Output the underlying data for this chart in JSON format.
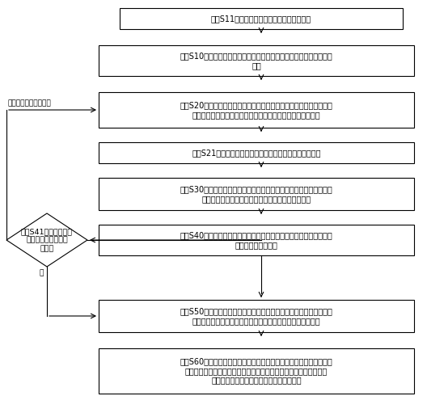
{
  "bg_color": "#ffffff",
  "box_fill": "#ffffff",
  "box_edge": "#000000",
  "arrow_color": "#000000",
  "font_color": "#000000",
  "s11_text": "步骤S11判断涂覆对象为竖直分布多相裸导线",
  "s10_text": "步骤S10涂覆前准备：确定涂料种类、计算推料速度、行走速度和涂料\n用量",
  "s20_text": "步骤S20吹挂行走模块：先分别在最上端和最下端的裸导线上各安装一\n套滑轮，再将两套行走模块的其余部件分别吹挂在对应滑轮上",
  "s21_text": "步骤S21整理线路：把通讯天线和连接线拧紧在行走模块上",
  "s30_text": "步骤S30安装推料模块：添加涂料，将推料模块安装在最下端裸导线上\n的行走模块下，上端的行走模块挂上对应重量的重物",
  "s40_text": "步骤S40安装涂覆模块：将涂覆模块安装在上端裸导线上的行走模块后\n方，嘴头包围裸导线",
  "s50_text": "步骤S50设备调试及涂覆作业：设定推料和行走速度，进行预推料保证\n推料管及嘴头充满涂料，同步启动两套行走模块进行涂覆作业",
  "s60_text": "步骤S60停止作业和机器人拆除：停止涂覆作业，推料模块补充涂料，\n行走模块和涂覆模块拆下并安装到次高裸电线上，重复上述步骤进行\n第二相涂覆；最后一相按单相电缆步骤执行",
  "s41_text": "步骤S41：裸电线离出\n料口的距离是否符合\n规定。",
  "yes_label": "是；检查是否安装正确",
  "no_label": "否",
  "font_size_main": 7.0,
  "font_size_diamond": 6.8,
  "font_size_label": 6.5,
  "lw": 0.8
}
